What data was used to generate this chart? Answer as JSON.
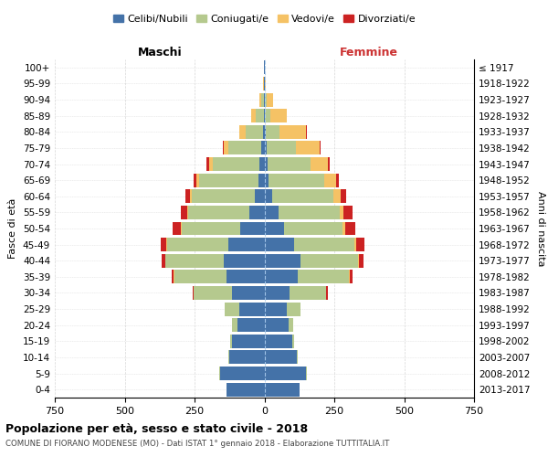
{
  "age_groups": [
    "100+",
    "95-99",
    "90-94",
    "85-89",
    "80-84",
    "75-79",
    "70-74",
    "65-69",
    "60-64",
    "55-59",
    "50-54",
    "45-49",
    "40-44",
    "35-39",
    "30-34",
    "25-29",
    "20-24",
    "15-19",
    "10-14",
    "5-9",
    "0-4"
  ],
  "birth_years": [
    "≤ 1917",
    "1918-1922",
    "1923-1927",
    "1928-1932",
    "1933-1937",
    "1938-1942",
    "1943-1947",
    "1948-1952",
    "1953-1957",
    "1958-1962",
    "1963-1967",
    "1968-1972",
    "1973-1977",
    "1978-1982",
    "1983-1987",
    "1988-1992",
    "1993-1997",
    "1998-2002",
    "2003-2007",
    "2008-2012",
    "2013-2017"
  ],
  "male": {
    "celibi": [
      1,
      1,
      2,
      3,
      5,
      10,
      18,
      22,
      35,
      55,
      85,
      130,
      145,
      135,
      115,
      90,
      95,
      115,
      125,
      160,
      135
    ],
    "coniugati": [
      1,
      2,
      10,
      28,
      62,
      118,
      168,
      212,
      225,
      218,
      212,
      218,
      210,
      188,
      138,
      52,
      22,
      8,
      3,
      1,
      0
    ],
    "vedovi": [
      0,
      1,
      5,
      15,
      22,
      18,
      12,
      8,
      6,
      4,
      3,
      2,
      1,
      1,
      0,
      0,
      0,
      0,
      0,
      0,
      0
    ],
    "divorziati": [
      0,
      0,
      0,
      0,
      1,
      4,
      8,
      12,
      18,
      22,
      28,
      22,
      12,
      8,
      4,
      1,
      0,
      0,
      0,
      0,
      0
    ]
  },
  "female": {
    "nubili": [
      0,
      0,
      1,
      2,
      4,
      8,
      10,
      15,
      28,
      50,
      70,
      105,
      128,
      118,
      90,
      80,
      85,
      100,
      115,
      150,
      125
    ],
    "coniugate": [
      0,
      1,
      8,
      20,
      50,
      105,
      155,
      198,
      218,
      218,
      210,
      218,
      208,
      185,
      132,
      48,
      18,
      6,
      3,
      1,
      0
    ],
    "vedove": [
      1,
      3,
      22,
      58,
      95,
      85,
      62,
      42,
      26,
      15,
      8,
      4,
      2,
      1,
      0,
      0,
      0,
      0,
      0,
      0,
      0
    ],
    "divorziate": [
      0,
      0,
      0,
      1,
      2,
      4,
      8,
      12,
      22,
      32,
      38,
      32,
      18,
      10,
      4,
      1,
      0,
      0,
      0,
      0,
      0
    ]
  },
  "colors": {
    "celibi": "#4472a8",
    "coniugati": "#b5c98e",
    "vedovi": "#f5c265",
    "divorziati": "#cc2222"
  },
  "xlim": 750,
  "title": "Popolazione per età, sesso e stato civile - 2018",
  "subtitle": "COMUNE DI FIORANO MODENESE (MO) - Dati ISTAT 1° gennaio 2018 - Elaborazione TUTTITALIA.IT",
  "ylabel": "Fasce di età",
  "ylabel_right": "Anni di nascita",
  "xticks": [
    -750,
    -500,
    -250,
    0,
    250,
    500,
    750
  ],
  "xticklabels": [
    "750",
    "500",
    "250",
    "0",
    "250",
    "500",
    "750"
  ],
  "legend_labels": [
    "Celibi/Nubili",
    "Coniugati/e",
    "Vedovi/e",
    "Divorziati/e"
  ],
  "maschi_label": "Maschi",
  "femmine_label": "Femmine"
}
